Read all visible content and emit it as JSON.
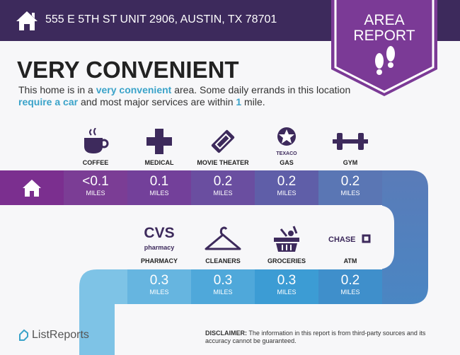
{
  "header": {
    "address": "555 E 5TH ST UNIT 2906, AUSTIN, TX 78701",
    "badge_line1": "AREA",
    "badge_line2": "REPORT"
  },
  "title": "VERY CONVENIENT",
  "description": {
    "p1": "This home is in a ",
    "h1": "very convenient",
    "p2": " area. Some daily errands in this location ",
    "h2": "require a car",
    "p3": " and most major services are within ",
    "h3": "1",
    "p4": " mile."
  },
  "unit": "MILES",
  "top_row": [
    {
      "label": "COFFEE",
      "value": "<0.1",
      "icon": "coffee-cup-icon"
    },
    {
      "label": "MEDICAL",
      "value": "0.1",
      "icon": "medical-cross-icon"
    },
    {
      "label": "MOVIE THEATER",
      "value": "0.2",
      "icon": "ticket-icon"
    },
    {
      "label": "GAS",
      "value": "0.2",
      "icon": "texaco-icon",
      "brand": "TEXACO"
    },
    {
      "label": "GYM",
      "value": "0.2",
      "icon": "dumbbell-icon"
    }
  ],
  "bottom_row": [
    {
      "label": "PHARMACY",
      "value": "0.3",
      "icon": "cvs-logo-icon",
      "brand": "CVS",
      "brand_sub": "pharmacy"
    },
    {
      "label": "CLEANERS",
      "value": "0.3",
      "icon": "hanger-icon"
    },
    {
      "label": "GROCERIES",
      "value": "0.3",
      "icon": "basket-icon"
    },
    {
      "label": "ATM",
      "value": "0.2",
      "icon": "chase-logo-icon",
      "brand": "CHASE"
    }
  ],
  "footer": {
    "logo": "ListReports",
    "disclaimer_label": "DISCLAIMER:",
    "disclaimer": " The information in this report is from third-party sources and its accuracy cannot be guaranteed."
  },
  "colors": {
    "header": "#3d2a5c",
    "badge": "#7b3a96",
    "highlight": "#3aa3c9"
  }
}
